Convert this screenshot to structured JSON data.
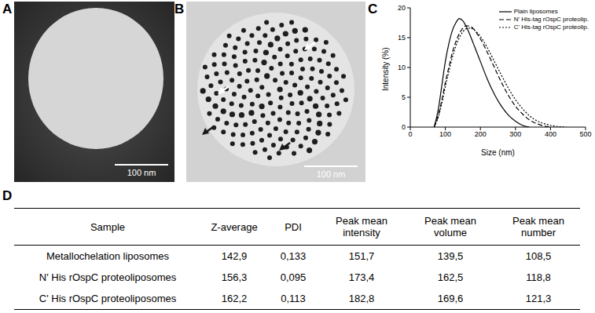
{
  "panels": {
    "A": {
      "label": "A",
      "scale_bar": "100 nm"
    },
    "B": {
      "label": "B",
      "scale_bar": "100 nm"
    },
    "C": {
      "label": "C"
    },
    "D": {
      "label": "D"
    }
  },
  "chart_data": {
    "type": "line",
    "xlabel": "Size (nm)",
    "ylabel": "Intensity (%)",
    "x": [
      68,
      80,
      90,
      100,
      110,
      120,
      130,
      140,
      150,
      160,
      170,
      180,
      190,
      200,
      220,
      240,
      260,
      280,
      300,
      320,
      340,
      360,
      380,
      400,
      420,
      440
    ],
    "series": [
      {
        "name": "Plain liposomes",
        "color": "#000000",
        "line_style": "solid",
        "values": [
          0,
          3,
          7,
          11,
          14,
          16.2,
          17.5,
          18.2,
          17.8,
          16.8,
          15.5,
          14,
          12.5,
          11,
          8,
          5.5,
          3.5,
          2,
          1,
          0.3,
          0,
          null,
          null,
          null,
          null,
          null
        ]
      },
      {
        "name": "N' His-tag rOspC proteolip.",
        "color": "#000000",
        "line_style": "dashed",
        "values": [
          0,
          2,
          4.5,
          7.5,
          10,
          12.5,
          14.3,
          15.7,
          16.6,
          17,
          16.9,
          16.5,
          15.7,
          14.8,
          12.5,
          10,
          7.5,
          5.3,
          3.5,
          2.2,
          1.2,
          0.6,
          0.2,
          0,
          null,
          null
        ]
      },
      {
        "name": "C' His-tag rOspC proteolip.",
        "color": "#000000",
        "line_style": "dotted",
        "values": [
          0,
          1.7,
          4,
          6.8,
          9.3,
          11.7,
          13.6,
          15,
          16,
          16.5,
          16.6,
          16.4,
          15.9,
          15.2,
          13.3,
          11,
          8.7,
          6.5,
          4.6,
          3.1,
          1.9,
          1.1,
          0.6,
          0.3,
          0.1,
          0
        ]
      }
    ],
    "xlim": [
      0,
      500
    ],
    "xticks": [
      0,
      100,
      200,
      300,
      400,
      500
    ],
    "ylim": [
      0,
      20
    ],
    "yticks": [
      0,
      5,
      10,
      15,
      20
    ],
    "legend": "upper right"
  },
  "table": {
    "header": [
      "Sample",
      "Z-average",
      "PDI",
      "Peak mean intensity",
      "Peak mean volume",
      "Peak mean number"
    ],
    "rows": [
      [
        "Metallochelation liposomes",
        "142,9",
        "0,133",
        "151,7",
        "139,5",
        "108,5"
      ],
      [
        "N' His rOspC proteoliposomes",
        "156,3",
        "0,095",
        "173,4",
        "162,5",
        "118,8"
      ],
      [
        "C' His rOspC proteoliposomes",
        "162,2",
        "0,113",
        "182,8",
        "169,6",
        "121,3"
      ]
    ]
  }
}
